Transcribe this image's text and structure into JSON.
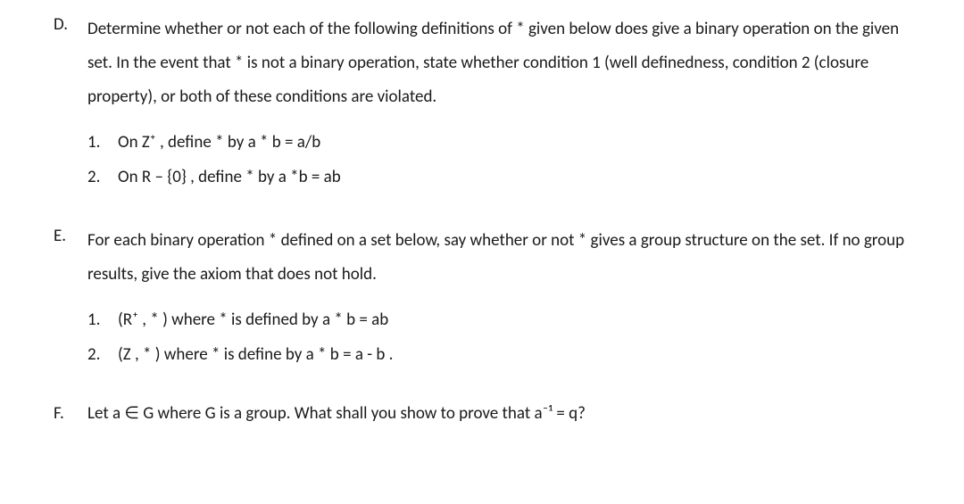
{
  "font": {
    "family": "Calibri, 'Segoe UI', Arial, sans-serif",
    "size_pt": 14,
    "color": "#1a1a1a"
  },
  "background_color": "#ffffff",
  "sections": {
    "D": {
      "label": "D.",
      "intro": "Determine whether or not each of the following definitions of * given below does give a binary operation on the given set. In the event that * is not a binary operation, state whether condition 1 (well definedness, condition 2 (closure property), or both of these conditions are violated.",
      "items": [
        {
          "num": "1.",
          "text": "On Z⁺ , define * by a * b = a/b"
        },
        {
          "num": "2.",
          "text": "On R – {0} , define * by a *b = ab"
        }
      ]
    },
    "E": {
      "label": "E.",
      "intro": "For each binary operation * defined on a set below, say whether or not * gives a group structure on the set. If no group results, give the axiom that does not hold.",
      "items": [
        {
          "num": "1.",
          "text": "(R⁺ , * ) where * is defined by a * b = ab"
        },
        {
          "num": "2.",
          "text": "(Z , * ) where * is define by a * b = a - b ."
        }
      ]
    },
    "F": {
      "label": "F.",
      "text": "Let a ∈ G where G is a group. What shall you show to prove that a⁻¹ = q?"
    }
  }
}
